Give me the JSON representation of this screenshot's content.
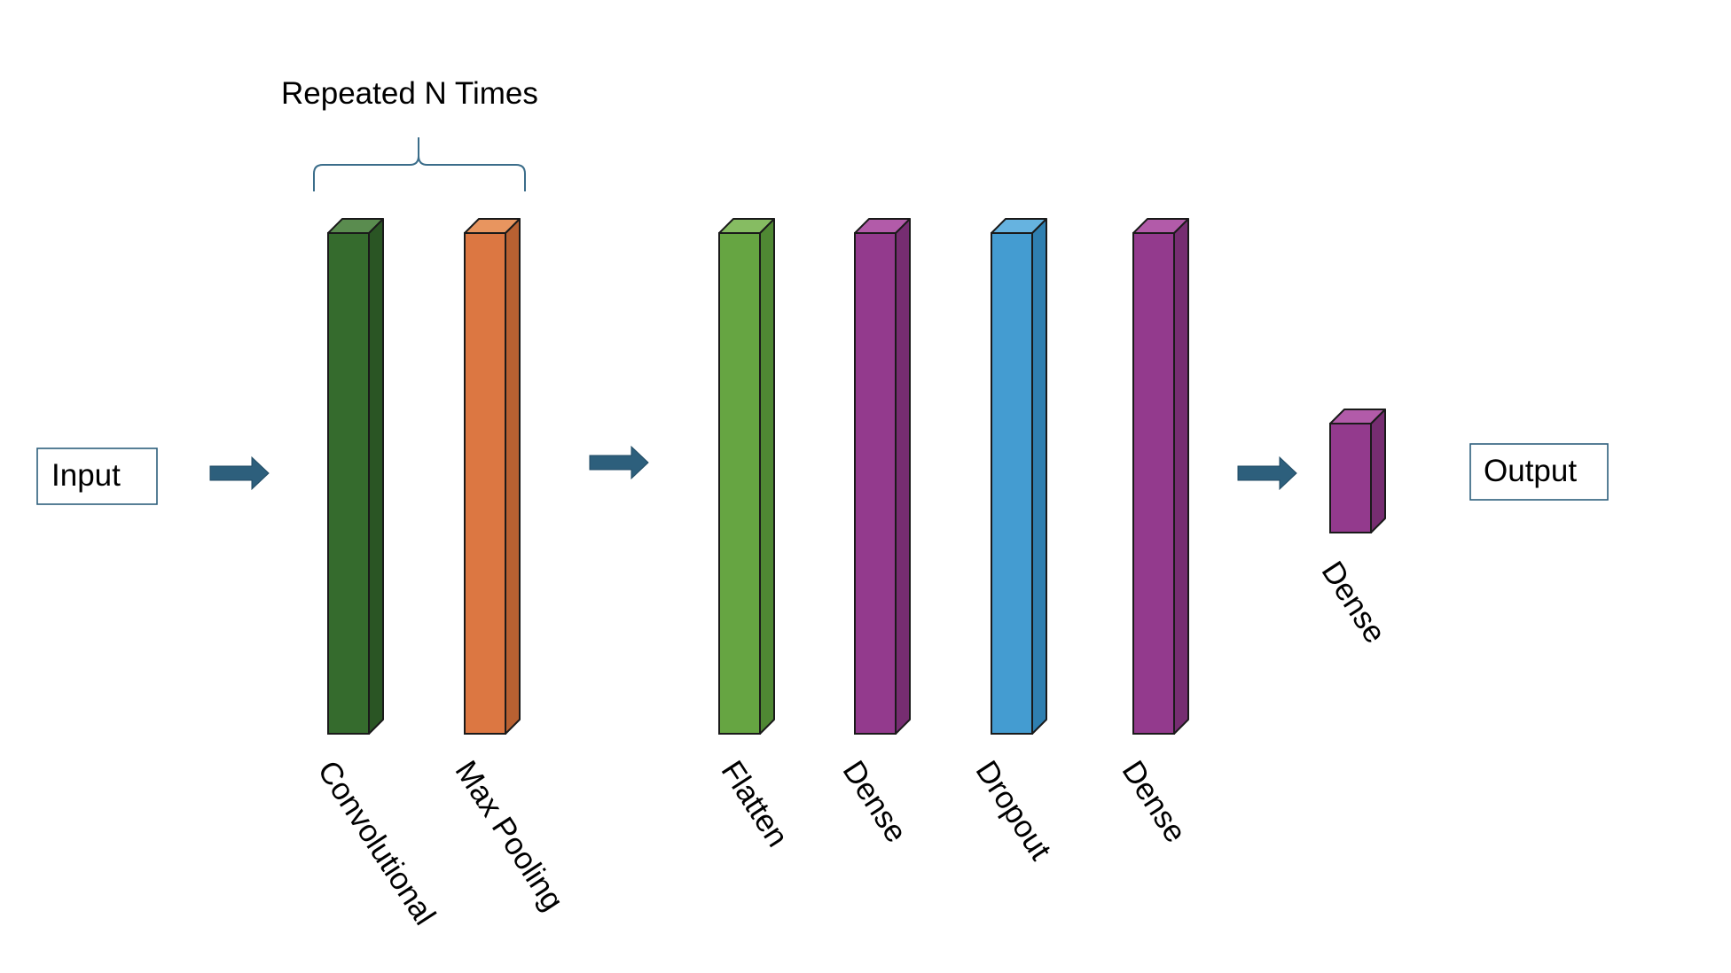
{
  "diagram": {
    "input_label": "Input",
    "output_label": "Output",
    "repeat_label": "Repeated N Times",
    "layers": [
      {
        "label": "Convolutional",
        "front": "#356b2d",
        "side": "#2a5524",
        "top": "#5a8c4f"
      },
      {
        "label": "Max Pooling",
        "front": "#dc7742",
        "side": "#b86132",
        "top": "#e8955f"
      },
      {
        "label": "Flatten",
        "front": "#66a542",
        "side": "#4f8833",
        "top": "#86bc62"
      },
      {
        "label": "Dense",
        "front": "#933a8d",
        "side": "#762d71",
        "top": "#b25ba9"
      },
      {
        "label": "Dropout",
        "front": "#449cd1",
        "side": "#2f7fb0",
        "top": "#66b3e0"
      },
      {
        "label": "Dense",
        "front": "#933a8d",
        "side": "#762d71",
        "top": "#b25ba9"
      },
      {
        "label": "Dense",
        "front": "#933a8d",
        "side": "#762d71",
        "top": "#b25ba9"
      }
    ],
    "colors": {
      "arrow": "#2d5f7c",
      "brace": "#3b6d8a",
      "box_border": "#2d5f7c",
      "outline": "#1a1a1a"
    }
  }
}
